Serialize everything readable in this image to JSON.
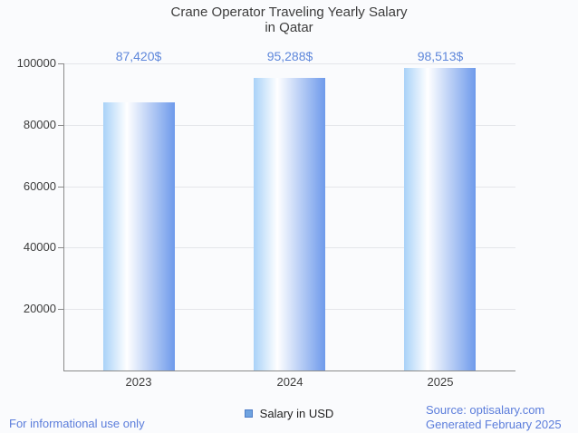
{
  "title": {
    "line1": "Crane Operator Traveling Yearly Salary",
    "line2": "in Qatar"
  },
  "chart_data": {
    "type": "bar",
    "title": "Crane Operator Traveling Yearly Salary in Qatar",
    "categories": [
      "2023",
      "2024",
      "2025"
    ],
    "values": [
      87420,
      95288,
      98513
    ],
    "value_labels": [
      "87,420$",
      "95,288$",
      "98,513$"
    ],
    "series": [
      {
        "name": "Salary in USD",
        "values": [
          87420,
          95288,
          98513
        ]
      }
    ],
    "xlabel": "",
    "ylabel": "",
    "ylim": [
      0,
      100000
    ],
    "yticks": [
      100000,
      80000,
      60000,
      40000,
      20000
    ],
    "grid": true,
    "legend_position": "bottom",
    "colors": {
      "bar_gradient_left": "#a9d2f8",
      "bar_gradient_mid": "#ffffff",
      "bar_gradient_right": "#6e9aeb",
      "value_label": "#5e87db",
      "gridline": "#e4e6ea",
      "axis": "#8a8a8a"
    }
  },
  "legend": {
    "label": "Salary in USD",
    "marker_color": "#6fa3e0"
  },
  "footer": {
    "left": "For informational use only",
    "source": "Source: optisalary.com",
    "generated": "Generated February 2025",
    "color": "#5b7ddb"
  }
}
